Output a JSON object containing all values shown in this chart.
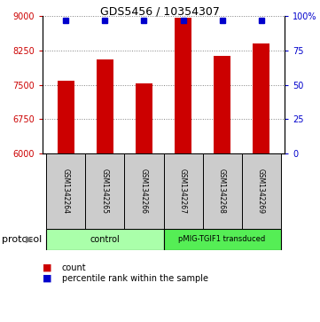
{
  "title": "GDS5456 / 10354307",
  "samples": [
    "GSM1342264",
    "GSM1342265",
    "GSM1342266",
    "GSM1342267",
    "GSM1342268",
    "GSM1342269"
  ],
  "counts": [
    7580,
    8050,
    7530,
    8960,
    8130,
    8400
  ],
  "percentile_ranks": [
    97,
    97,
    97,
    97,
    97,
    97
  ],
  "ylim_left": [
    6000,
    9000
  ],
  "yticks_left": [
    6000,
    6750,
    7500,
    8250,
    9000
  ],
  "ylim_right": [
    0,
    100
  ],
  "yticks_right": [
    0,
    25,
    50,
    75,
    100
  ],
  "bar_color": "#cc0000",
  "dot_color": "#0000cc",
  "groups": [
    {
      "label": "control",
      "n_samples": 3,
      "color": "#aaffaa"
    },
    {
      "label": "pMIG-TGIF1 transduced",
      "n_samples": 3,
      "color": "#55ee55"
    }
  ],
  "protocol_label": "protocol",
  "legend_count_label": "count",
  "legend_percentile_label": "percentile rank within the sample",
  "bg_color": "#ffffff",
  "label_area_color": "#cccccc",
  "bar_width": 0.45,
  "title_fontsize": 9,
  "tick_fontsize": 7,
  "sample_fontsize": 5.5,
  "group_fontsize": 7,
  "legend_fontsize": 7
}
